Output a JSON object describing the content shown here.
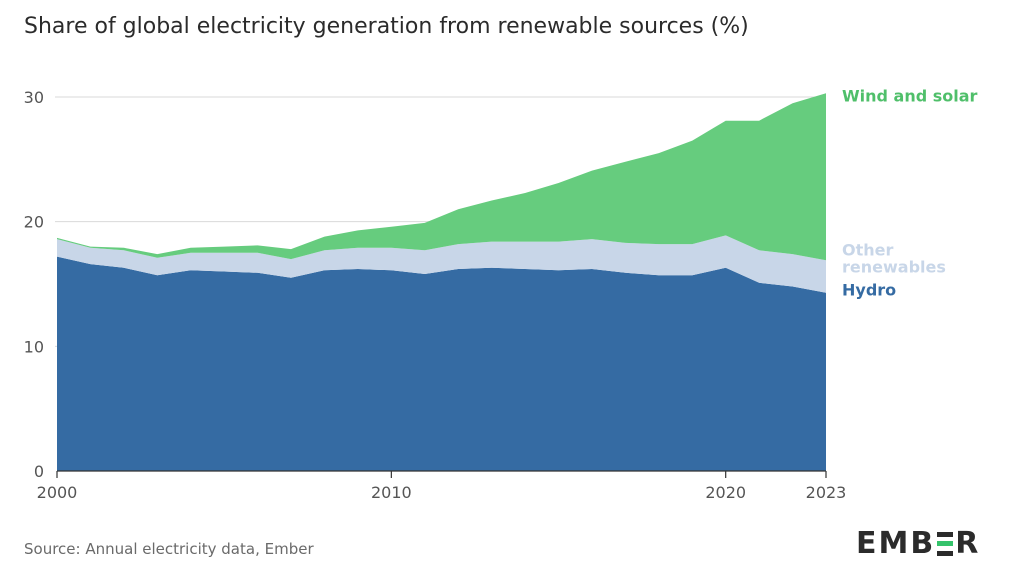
{
  "title": "Share of global electricity generation from renewable sources (%)",
  "source": "Source: Annual electricity data, Ember",
  "logo": {
    "text_left": "EMB",
    "text_right": "R",
    "full": "EMBER"
  },
  "colors": {
    "hydro": "#356ba3",
    "other": "#c8d6e8",
    "wind_solar": "#66cc7e",
    "grid": "#d9d9d9",
    "axis_text": "#555555"
  },
  "chart_data": {
    "type": "area",
    "stacked": true,
    "title": "Share of global electricity generation from renewable sources (%)",
    "x": [
      2000,
      2001,
      2002,
      2003,
      2004,
      2005,
      2006,
      2007,
      2008,
      2009,
      2010,
      2011,
      2012,
      2013,
      2014,
      2015,
      2016,
      2017,
      2018,
      2019,
      2020,
      2021,
      2022,
      2023
    ],
    "ylim": [
      0,
      30
    ],
    "xlim": [
      2000,
      2023
    ],
    "yticks": [
      "0",
      "10",
      "20",
      "30"
    ],
    "xticks": [
      {
        "value": 2000,
        "label": "2000"
      },
      {
        "value": 2010,
        "label": "2010"
      },
      {
        "value": 2020,
        "label": "2020"
      },
      {
        "value": 2023,
        "label": "2023"
      }
    ],
    "series": [
      {
        "name": "Hydro",
        "label_lines": [
          "Hydro"
        ],
        "color": "#356ba3",
        "label_color": "#356ba3",
        "values": [
          17.2,
          16.6,
          16.3,
          15.7,
          16.1,
          16.0,
          15.9,
          15.5,
          16.1,
          16.2,
          16.1,
          15.8,
          16.2,
          16.3,
          16.2,
          16.1,
          16.2,
          15.9,
          15.7,
          15.7,
          16.3,
          15.1,
          14.8,
          14.3
        ]
      },
      {
        "name": "Other renewables",
        "label_lines": [
          "Other",
          "renewables"
        ],
        "color": "#c8d6e8",
        "label_color": "#c8d6e8",
        "values": [
          1.4,
          1.3,
          1.4,
          1.4,
          1.4,
          1.5,
          1.6,
          1.5,
          1.6,
          1.7,
          1.8,
          1.9,
          2.0,
          2.1,
          2.2,
          2.3,
          2.4,
          2.4,
          2.5,
          2.5,
          2.6,
          2.6,
          2.6,
          2.6
        ]
      },
      {
        "name": "Wind and solar",
        "label_lines": [
          "Wind and solar"
        ],
        "color": "#66cc7e",
        "label_color": "#4fbf6a",
        "values": [
          0.1,
          0.1,
          0.2,
          0.3,
          0.4,
          0.5,
          0.6,
          0.8,
          1.1,
          1.4,
          1.7,
          2.2,
          2.8,
          3.3,
          3.9,
          4.7,
          5.5,
          6.5,
          7.3,
          8.3,
          9.2,
          10.4,
          12.1,
          13.4
        ]
      }
    ]
  }
}
